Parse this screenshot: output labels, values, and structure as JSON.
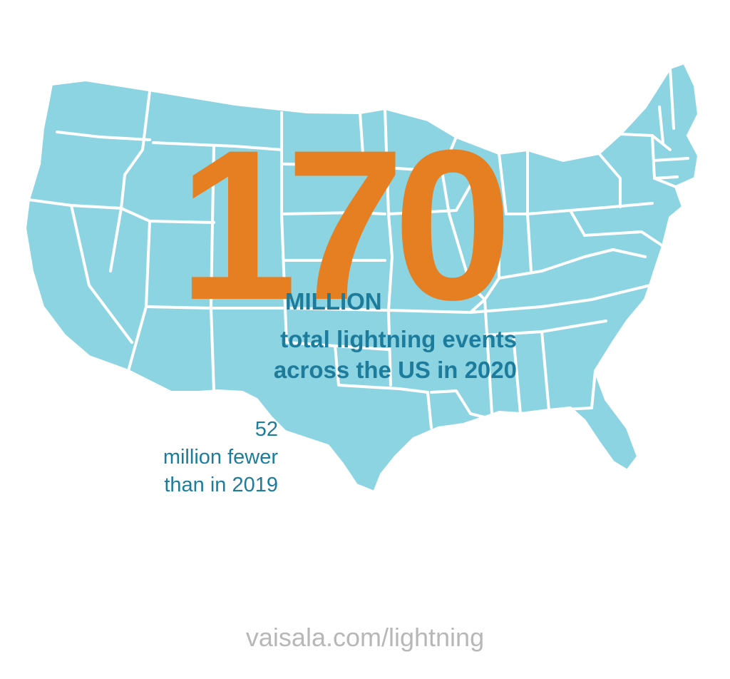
{
  "colors": {
    "background": "#ffffff",
    "map_fill": "#8cd4e2",
    "state_border": "#ffffff",
    "accent_orange": "#e57f21",
    "text_blue": "#1d7c9c",
    "footer_gray": "#b7b7b7"
  },
  "headline": {
    "number": "170",
    "unit": "MILLION",
    "description_line1": "total lightning events",
    "description_line2": "across the US in 2020"
  },
  "comparison": {
    "line1": "52",
    "line2": "million fewer",
    "line3": "than in 2019"
  },
  "footer": {
    "url": "vaisala.com/lightning"
  },
  "map": {
    "region": "contiguous-united-states",
    "icon": "us-states-map"
  }
}
